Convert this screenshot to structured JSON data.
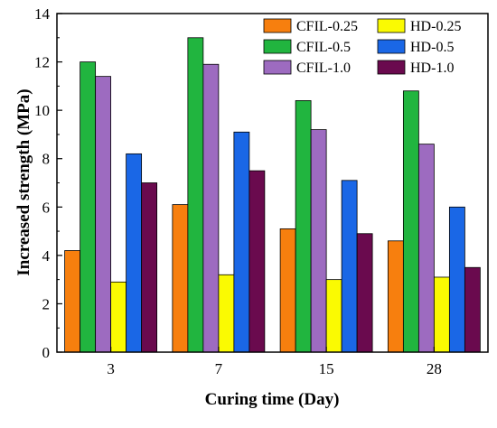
{
  "chart_data": {
    "type": "bar",
    "categories": [
      "3",
      "7",
      "15",
      "28"
    ],
    "series": [
      {
        "name": "CFIL-0.25",
        "color": "#f77f0e",
        "values": [
          4.2,
          6.1,
          5.1,
          4.6
        ]
      },
      {
        "name": "CFIL-0.5",
        "color": "#21b53f",
        "values": [
          12.0,
          13.0,
          10.4,
          10.8
        ]
      },
      {
        "name": "CFIL-1.0",
        "color": "#9d6bc0",
        "values": [
          11.4,
          11.9,
          9.2,
          8.6
        ]
      },
      {
        "name": "HD-0.25",
        "color": "#fafa02",
        "values": [
          2.9,
          3.2,
          3.0,
          3.1
        ]
      },
      {
        "name": "HD-0.5",
        "color": "#1a67e6",
        "values": [
          8.2,
          9.1,
          7.1,
          6.0
        ]
      },
      {
        "name": "HD-1.0",
        "color": "#6a0a4e",
        "values": [
          7.0,
          7.5,
          4.9,
          3.5
        ]
      }
    ],
    "title": "",
    "xlabel": "Curing time (Day)",
    "ylabel": "Increased strength (MPa)",
    "ylim": [
      0,
      14
    ],
    "yticks": [
      "0",
      "2",
      "4",
      "6",
      "8",
      "10",
      "12",
      "14"
    ],
    "grid": false,
    "legend_position": "top-right"
  }
}
